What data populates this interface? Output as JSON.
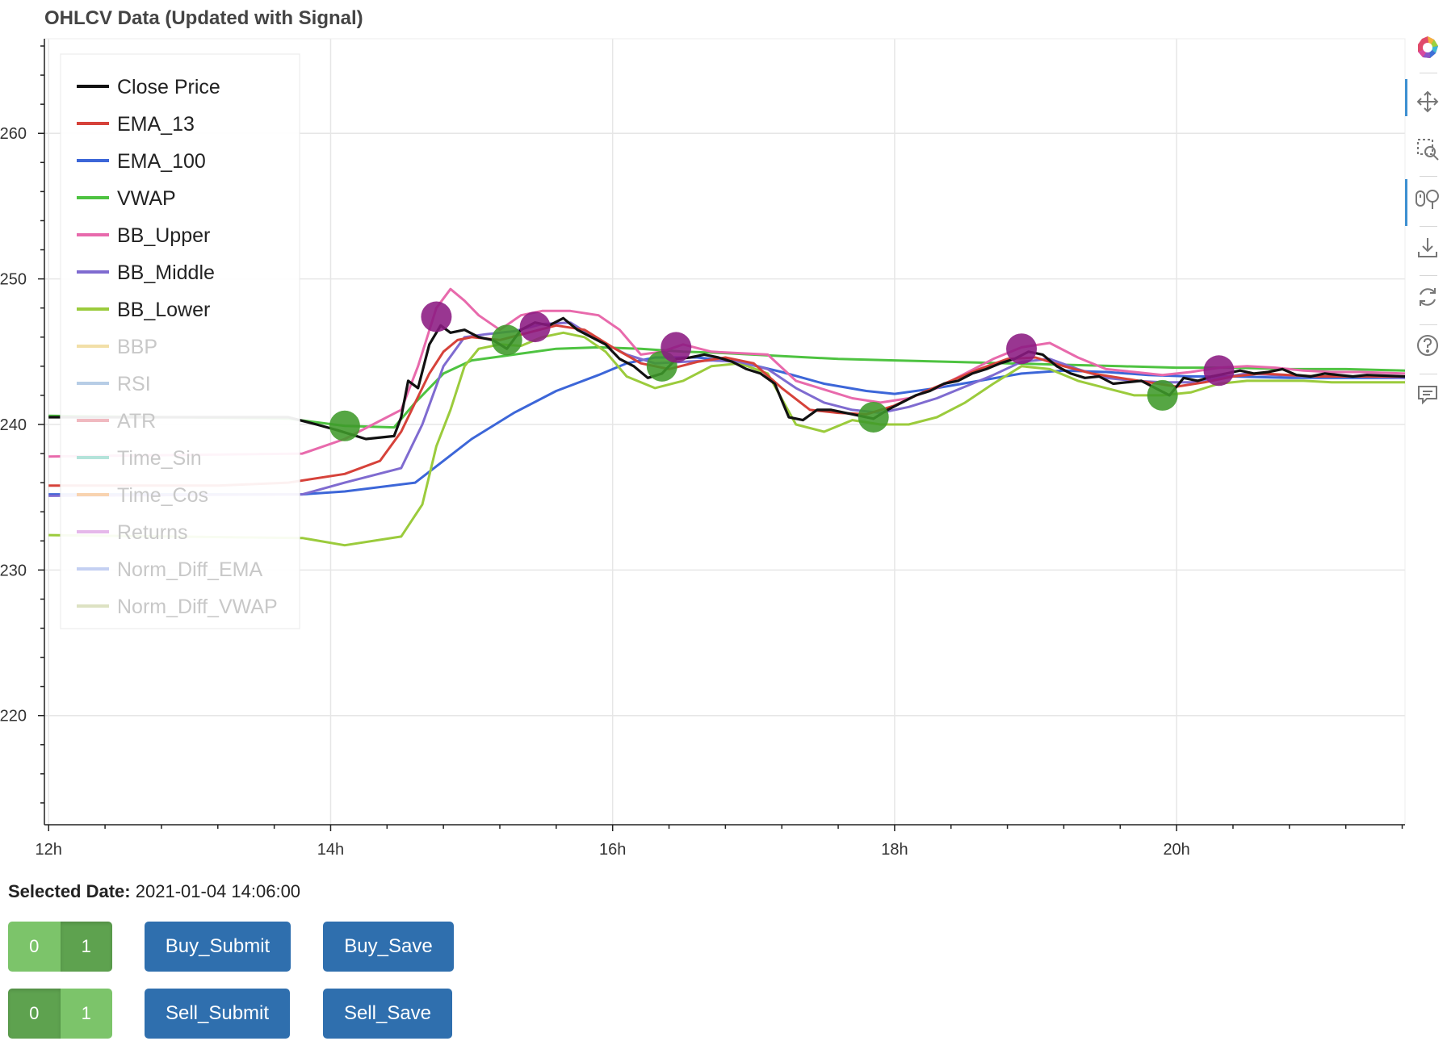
{
  "chart_data": {
    "type": "line",
    "title": "OHLCV Data (Updated with Signal)",
    "xlabel": "",
    "ylabel": "",
    "x_ticks": [
      "12h",
      "14h",
      "16h",
      "18h",
      "20h"
    ],
    "x_range_hours": [
      11.97,
      21.62
    ],
    "y_ticks": [
      "220",
      "230",
      "240",
      "250",
      "260"
    ],
    "ylim": [
      212.5,
      266.5
    ],
    "grid": true,
    "legend_position": "top-left",
    "legend": [
      {
        "name": "Close Price",
        "color": "#111111",
        "visible": true
      },
      {
        "name": "EMA_13",
        "color": "#d6423a",
        "visible": true
      },
      {
        "name": "EMA_100",
        "color": "#3c66d8",
        "visible": true
      },
      {
        "name": "VWAP",
        "color": "#4ec341",
        "visible": true
      },
      {
        "name": "BB_Upper",
        "color": "#e86aac",
        "visible": true
      },
      {
        "name": "BB_Middle",
        "color": "#7f6bd0",
        "visible": true
      },
      {
        "name": "BB_Lower",
        "color": "#9bcb3c",
        "visible": true
      },
      {
        "name": "BBP",
        "color": "#f2dfa8",
        "visible": false
      },
      {
        "name": "RSI",
        "color": "#b7cde6",
        "visible": false
      },
      {
        "name": "ATR",
        "color": "#f0b9c0",
        "visible": false
      },
      {
        "name": "Time_Sin",
        "color": "#b4e3da",
        "visible": false
      },
      {
        "name": "Time_Cos",
        "color": "#f8d3b0",
        "visible": false
      },
      {
        "name": "Returns",
        "color": "#e5b8ea",
        "visible": false
      },
      {
        "name": "Norm_Diff_EMA",
        "color": "#c4d0f2",
        "visible": false
      },
      {
        "name": "Norm_Diff_VWAP",
        "color": "#dde2c3",
        "visible": false
      }
    ],
    "series": [
      {
        "name": "Close Price",
        "x": [
          12.0,
          13.7,
          13.9,
          14.05,
          14.25,
          14.45,
          14.5,
          14.55,
          14.62,
          14.7,
          14.78,
          14.85,
          14.95,
          15.05,
          15.15,
          15.25,
          15.35,
          15.45,
          15.55,
          15.65,
          15.75,
          15.85,
          15.95,
          16.05,
          16.15,
          16.25,
          16.35,
          16.45,
          16.55,
          16.65,
          16.75,
          16.85,
          16.95,
          17.05,
          17.15,
          17.25,
          17.35,
          17.45,
          17.55,
          17.65,
          17.75,
          17.85,
          17.95,
          18.05,
          18.15,
          18.25,
          18.35,
          18.45,
          18.55,
          18.65,
          18.75,
          18.85,
          18.95,
          19.05,
          19.15,
          19.25,
          19.35,
          19.45,
          19.55,
          19.65,
          19.75,
          19.85,
          19.95,
          20.05,
          20.15,
          20.25,
          20.35,
          20.45,
          20.55,
          20.65,
          20.75,
          20.85,
          20.95,
          21.05,
          21.15,
          21.25,
          21.35,
          21.62
        ],
        "y": [
          240.5,
          240.5,
          240.0,
          239.6,
          239.0,
          239.2,
          240.5,
          243.0,
          242.5,
          245.5,
          246.8,
          246.3,
          246.5,
          246.0,
          245.8,
          245.2,
          246.5,
          247.0,
          246.8,
          247.3,
          246.5,
          246.0,
          245.5,
          244.5,
          244.0,
          243.2,
          243.5,
          244.5,
          244.6,
          244.8,
          244.6,
          244.3,
          243.8,
          243.5,
          242.8,
          240.5,
          240.3,
          241.0,
          241.0,
          240.8,
          240.6,
          240.4,
          241.0,
          241.5,
          242.0,
          242.3,
          242.8,
          243.0,
          243.5,
          243.8,
          244.2,
          244.5,
          245.0,
          244.8,
          244.0,
          243.5,
          243.2,
          243.3,
          242.8,
          242.9,
          243.0,
          242.5,
          242.0,
          243.2,
          243.0,
          243.3,
          243.5,
          243.7,
          243.5,
          243.6,
          243.8,
          243.4,
          243.3,
          243.5,
          243.4,
          243.3,
          243.4,
          243.3
        ]
      },
      {
        "name": "EMA_13",
        "x": [
          12.0,
          13.2,
          13.7,
          14.1,
          14.35,
          14.5,
          14.6,
          14.7,
          14.8,
          14.9,
          15.0,
          15.2,
          15.4,
          15.6,
          15.8,
          16.0,
          16.2,
          16.4,
          16.6,
          16.8,
          17.0,
          17.2,
          17.4,
          17.6,
          17.8,
          18.0,
          18.2,
          18.4,
          18.6,
          18.8,
          19.0,
          19.2,
          19.4,
          19.6,
          19.8,
          20.0,
          20.2,
          20.4,
          20.6,
          20.8,
          21.0,
          21.2,
          21.62
        ],
        "y": [
          235.8,
          235.8,
          236.0,
          236.6,
          237.5,
          239.5,
          241.5,
          243.5,
          245.0,
          245.8,
          246.0,
          245.8,
          246.3,
          246.8,
          246.5,
          245.3,
          244.2,
          243.8,
          244.3,
          244.6,
          244.2,
          242.5,
          241.0,
          240.8,
          240.7,
          241.3,
          242.2,
          243.0,
          243.8,
          244.5,
          244.6,
          244.0,
          243.5,
          243.2,
          242.9,
          242.6,
          242.9,
          243.3,
          243.5,
          243.4,
          243.3,
          243.3,
          243.3
        ]
      },
      {
        "name": "EMA_100",
        "x": [
          12.0,
          13.8,
          14.1,
          14.6,
          14.8,
          15.0,
          15.3,
          15.6,
          15.9,
          16.1,
          16.3,
          16.6,
          16.9,
          17.2,
          17.5,
          17.8,
          18.0,
          18.3,
          18.6,
          18.9,
          19.2,
          19.5,
          19.8,
          20.1,
          20.4,
          20.8,
          21.2,
          21.62
        ],
        "y": [
          235.2,
          235.2,
          235.4,
          236.0,
          237.5,
          239.0,
          240.8,
          242.3,
          243.4,
          244.2,
          244.6,
          244.6,
          244.3,
          243.6,
          242.8,
          242.3,
          242.1,
          242.5,
          243.0,
          243.5,
          243.7,
          243.6,
          243.4,
          243.3,
          243.3,
          243.2,
          243.2,
          243.2
        ]
      },
      {
        "name": "VWAP",
        "x": [
          12.0,
          13.7,
          14.1,
          14.45,
          14.6,
          14.8,
          15.0,
          15.3,
          15.6,
          15.9,
          16.2,
          16.5,
          16.8,
          17.2,
          17.6,
          18.0,
          18.4,
          18.8,
          19.2,
          19.6,
          20.0,
          20.4,
          20.8,
          21.2,
          21.62
        ],
        "y": [
          240.6,
          240.4,
          239.9,
          239.8,
          241.5,
          243.5,
          244.4,
          244.8,
          245.2,
          245.3,
          245.2,
          245.0,
          244.9,
          244.7,
          244.5,
          244.4,
          244.3,
          244.2,
          244.1,
          244.0,
          243.9,
          243.9,
          243.8,
          243.8,
          243.7
        ]
      },
      {
        "name": "BB_Upper",
        "x": [
          12.0,
          13.8,
          14.1,
          14.5,
          14.62,
          14.75,
          14.85,
          14.95,
          15.05,
          15.2,
          15.35,
          15.5,
          15.7,
          15.9,
          16.05,
          16.2,
          16.35,
          16.5,
          16.7,
          16.9,
          17.1,
          17.3,
          17.5,
          17.7,
          17.9,
          18.1,
          18.3,
          18.5,
          18.7,
          18.9,
          19.1,
          19.3,
          19.5,
          19.7,
          19.9,
          20.1,
          20.3,
          20.5,
          20.7,
          20.9,
          21.1,
          21.3,
          21.62
        ],
        "y": [
          237.8,
          238.0,
          239.0,
          241.0,
          244.0,
          248.0,
          249.3,
          248.5,
          247.5,
          246.5,
          247.5,
          247.8,
          247.8,
          247.5,
          246.5,
          244.8,
          245.0,
          245.5,
          245.0,
          244.9,
          244.8,
          243.0,
          242.4,
          241.8,
          241.5,
          241.8,
          242.5,
          243.5,
          244.5,
          245.3,
          245.6,
          244.6,
          243.8,
          243.6,
          243.4,
          243.6,
          243.9,
          244.0,
          243.9,
          243.7,
          243.6,
          243.6,
          243.5
        ]
      },
      {
        "name": "BB_Middle",
        "x": [
          12.0,
          13.8,
          14.1,
          14.5,
          14.65,
          14.8,
          14.95,
          15.1,
          15.3,
          15.5,
          15.7,
          15.9,
          16.1,
          16.3,
          16.5,
          16.7,
          16.9,
          17.1,
          17.3,
          17.5,
          17.7,
          17.9,
          18.1,
          18.3,
          18.5,
          18.7,
          18.9,
          19.1,
          19.3,
          19.5,
          19.7,
          19.9,
          20.1,
          20.3,
          20.5,
          20.7,
          20.9,
          21.1,
          21.3,
          21.62
        ],
        "y": [
          235.1,
          235.2,
          236.0,
          237.0,
          240.0,
          244.0,
          246.0,
          246.2,
          246.4,
          246.9,
          247.0,
          245.8,
          244.8,
          244.2,
          244.3,
          244.4,
          244.3,
          243.8,
          242.5,
          241.5,
          241.0,
          240.8,
          241.2,
          241.8,
          242.6,
          243.4,
          244.3,
          244.5,
          243.8,
          243.2,
          243.0,
          242.9,
          242.9,
          243.2,
          243.5,
          243.4,
          243.3,
          243.3,
          243.3,
          243.2
        ]
      },
      {
        "name": "BB_Lower",
        "x": [
          12.0,
          13.8,
          14.1,
          14.5,
          14.65,
          14.75,
          14.85,
          14.95,
          15.05,
          15.2,
          15.35,
          15.5,
          15.65,
          15.8,
          15.95,
          16.1,
          16.3,
          16.5,
          16.7,
          16.9,
          17.1,
          17.3,
          17.5,
          17.7,
          17.9,
          18.1,
          18.3,
          18.5,
          18.7,
          18.9,
          19.1,
          19.3,
          19.5,
          19.7,
          19.9,
          20.1,
          20.3,
          20.5,
          20.7,
          20.9,
          21.1,
          21.3,
          21.62
        ],
        "y": [
          232.4,
          232.2,
          231.7,
          232.3,
          234.5,
          238.5,
          241.0,
          244.0,
          245.2,
          245.5,
          245.4,
          246.0,
          246.3,
          246.0,
          245.0,
          243.3,
          242.5,
          243.0,
          244.0,
          244.2,
          243.5,
          240.0,
          239.5,
          240.3,
          240.0,
          240.0,
          240.5,
          241.5,
          242.8,
          244.0,
          243.8,
          243.0,
          242.5,
          242.0,
          242.0,
          242.2,
          242.8,
          243.0,
          243.0,
          243.0,
          242.9,
          242.9,
          242.9
        ]
      }
    ],
    "buy_signals": [
      {
        "x": 14.1,
        "y": 239.9
      },
      {
        "x": 15.25,
        "y": 245.8
      },
      {
        "x": 16.35,
        "y": 244.0
      },
      {
        "x": 17.85,
        "y": 240.5
      },
      {
        "x": 19.9,
        "y": 242.0
      }
    ],
    "sell_signals": [
      {
        "x": 14.75,
        "y": 247.4
      },
      {
        "x": 15.45,
        "y": 246.7
      },
      {
        "x": 16.45,
        "y": 245.3
      },
      {
        "x": 18.9,
        "y": 245.2
      },
      {
        "x": 20.3,
        "y": 243.7
      }
    ]
  },
  "toolbar": {
    "tools": [
      "bokeh-logo-icon",
      "pan-icon",
      "box-zoom-icon",
      "wheel-zoom-icon",
      "save-icon",
      "reset-icon",
      "help-icon",
      "hover-icon"
    ]
  },
  "footer": {
    "selected_date_label": "Selected Date:",
    "selected_date_value": "2021-01-04 14:06:00"
  },
  "buy_toggle": {
    "options": [
      "0",
      "1"
    ],
    "active": "1"
  },
  "sell_toggle": {
    "options": [
      "0",
      "1"
    ],
    "active": "0"
  },
  "buttons": {
    "buy_submit": "Buy_Submit",
    "buy_save": "Buy_Save",
    "sell_submit": "Sell_Submit",
    "sell_save": "Sell_Save"
  }
}
